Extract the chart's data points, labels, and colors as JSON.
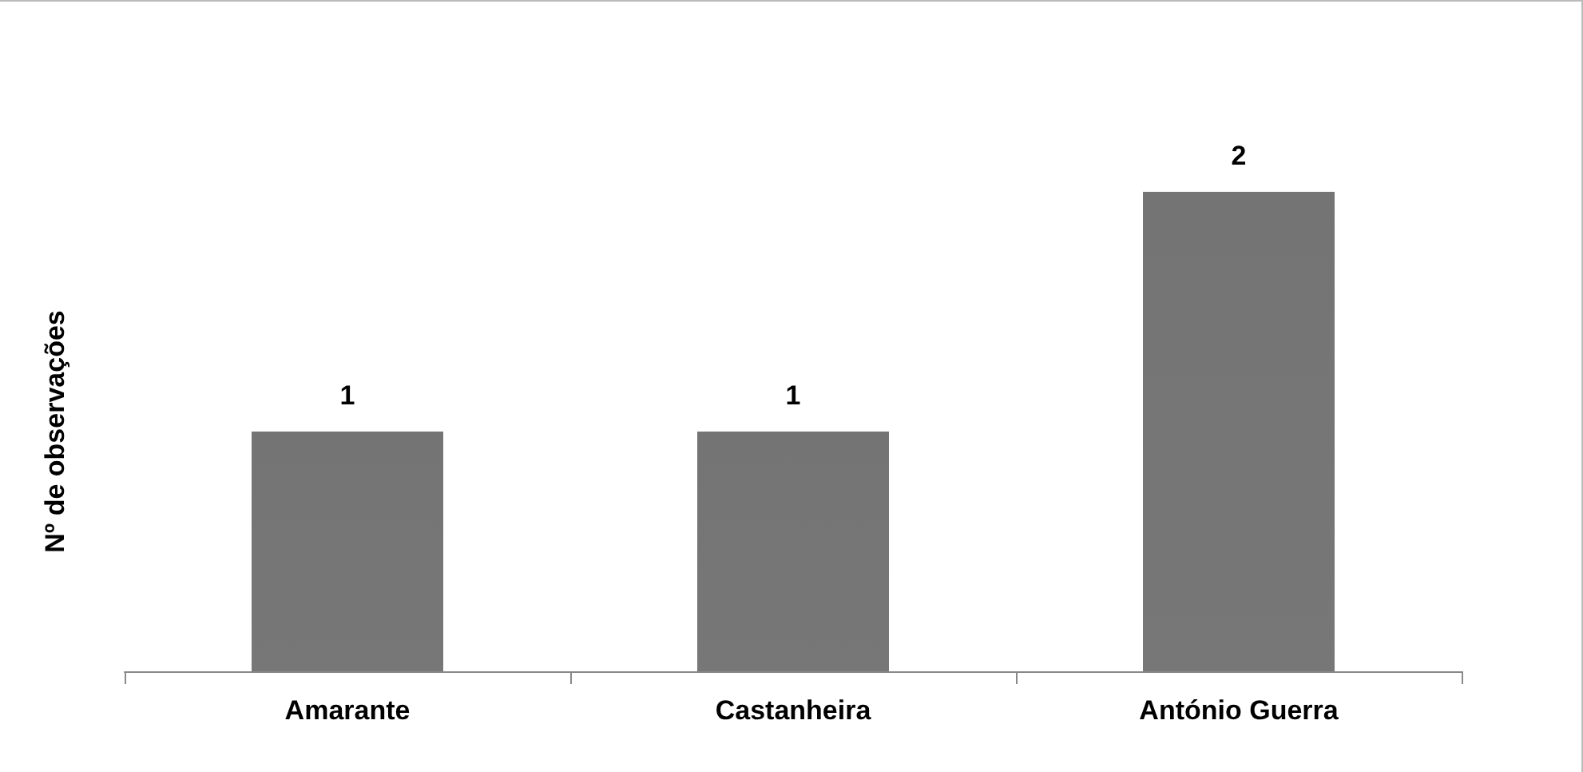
{
  "chart_data": {
    "type": "bar",
    "ylabel": "Nº de observações",
    "categories": [
      "Amarante",
      "Castanheira",
      "António Guerra"
    ],
    "values": [
      1,
      1,
      2
    ],
    "color": "#686868",
    "data_labels": true
  }
}
